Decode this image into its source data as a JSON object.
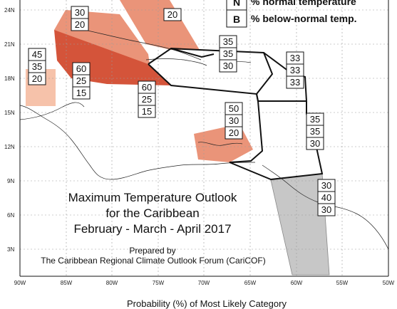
{
  "title": {
    "line1": "Maximum Temperature Outlook",
    "line2": "for the Caribbean",
    "line3": "February - March - April 2017",
    "prepared_by": "Prepared by",
    "forum": "The Caribbean Regional Climate Outlook Forum (CariCOF)"
  },
  "legend": {
    "top_entry": {
      "letter": "",
      "text": ""
    },
    "n_entry": {
      "letter": "N",
      "text": "% normal temperature"
    },
    "b_entry": {
      "letter": "B",
      "text": "% below-normal temp."
    }
  },
  "y_axis_labels": [
    "24N",
    "21N",
    "18N",
    "15N",
    "12N",
    "9N",
    "6N",
    "3N"
  ],
  "x_axis_labels": [
    "90W",
    "85W",
    "80W",
    "75W",
    "70W",
    "65W",
    "60W",
    "55W",
    "50W"
  ],
  "bottom_caption": "Probability (%) of Most Likely Category",
  "colors": {
    "light_salmon": "#f6c2aa",
    "salmon": "#e8886a",
    "dark_orange_red": "#d4543a",
    "gray_region": "#c7c7c7",
    "grid": "#9a9a9a"
  },
  "zone_forecasts": {
    "bahamas_north": {
      "above": "",
      "normal": "30",
      "below": "20"
    },
    "cuba_east": {
      "above": "",
      "normal": "",
      "below": "20"
    },
    "belize_yucatan": {
      "above": "45",
      "normal": "35",
      "below": "20"
    },
    "western_caribbean": {
      "above": "60",
      "normal": "25",
      "below": "15"
    },
    "jamaica_south": {
      "above": "60",
      "normal": "25",
      "below": "15"
    },
    "hispaniola_puerto_rico": {
      "above": "35",
      "normal": "35",
      "below": "30"
    },
    "leeward_islands": {
      "above": "33",
      "normal": "33",
      "below": "33"
    },
    "abc_islands": {
      "above": "50",
      "normal": "30",
      "below": "20"
    },
    "windward_islands": {
      "above": "35",
      "normal": "35",
      "below": "30"
    },
    "guianas": {
      "above": "30",
      "normal": "40",
      "below": "30"
    }
  }
}
